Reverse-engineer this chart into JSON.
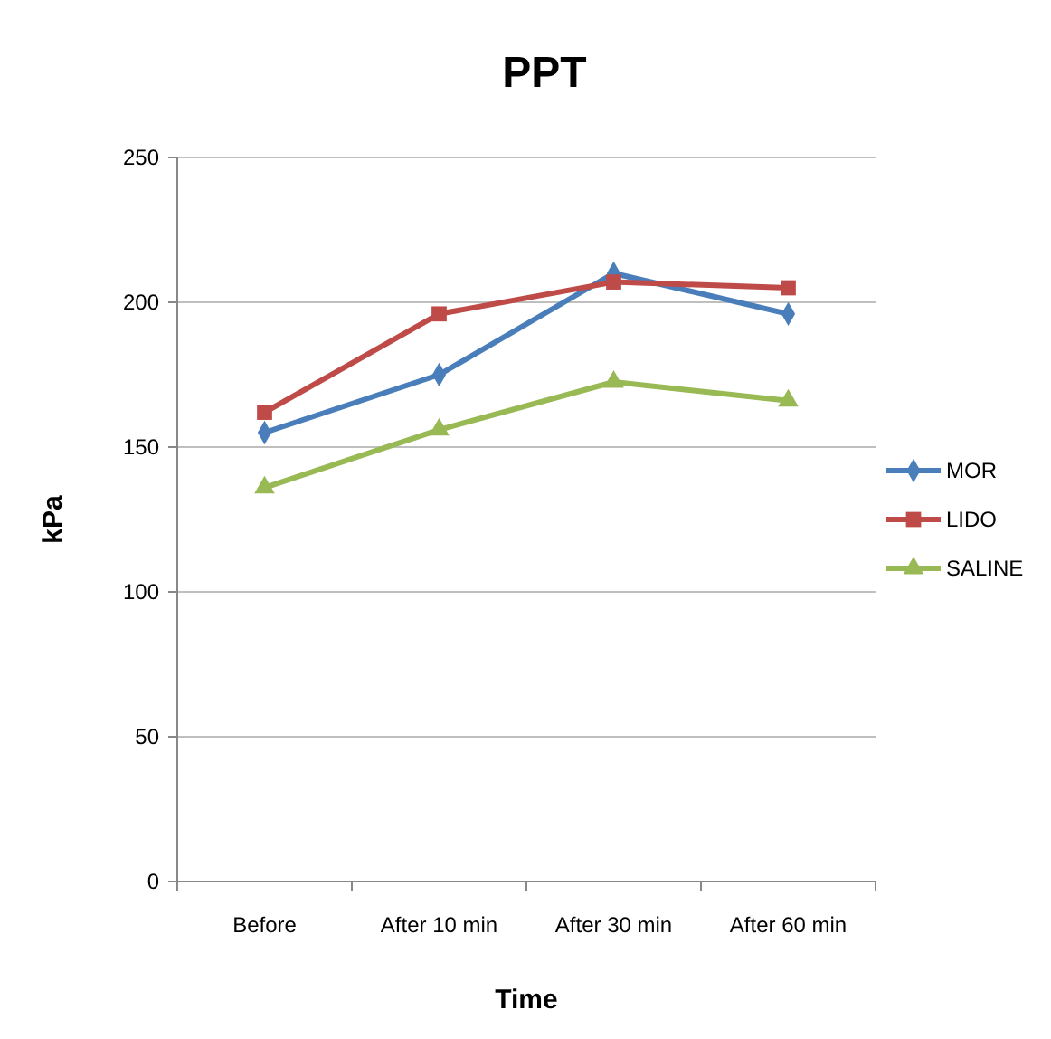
{
  "chart_data": {
    "type": "line",
    "title": "PPT",
    "xlabel": "Time",
    "ylabel": "kPa",
    "categories": [
      "Before",
      "After 10 min",
      "After 30 min",
      "After 60 min"
    ],
    "series": [
      {
        "name": "MOR",
        "color": "#4a7ebb",
        "marker": "diamond",
        "values": [
          155,
          175,
          210,
          196
        ]
      },
      {
        "name": "LIDO",
        "color": "#be4b48",
        "marker": "square",
        "values": [
          162,
          196,
          207,
          205
        ]
      },
      {
        "name": "SALINE",
        "color": "#98b954",
        "marker": "triangle",
        "values": [
          136,
          156,
          172.5,
          166
        ]
      }
    ],
    "ylim": [
      0,
      250
    ],
    "yticks": [
      0,
      50,
      100,
      150,
      200,
      250
    ],
    "grid": "y",
    "legend": "right"
  }
}
